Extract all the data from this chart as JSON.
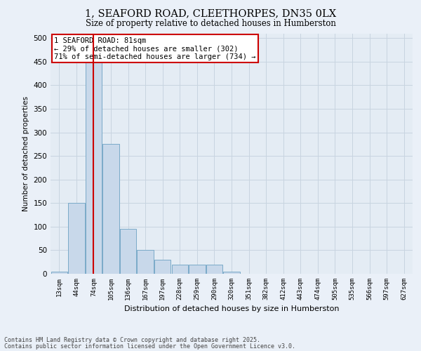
{
  "title1": "1, SEAFORD ROAD, CLEETHORPES, DN35 0LX",
  "title2": "Size of property relative to detached houses in Humberston",
  "xlabel": "Distribution of detached houses by size in Humberston",
  "ylabel": "Number of detached properties",
  "categories": [
    "13sqm",
    "44sqm",
    "74sqm",
    "105sqm",
    "136sqm",
    "167sqm",
    "197sqm",
    "228sqm",
    "259sqm",
    "290sqm",
    "320sqm",
    "351sqm",
    "382sqm",
    "412sqm",
    "443sqm",
    "474sqm",
    "505sqm",
    "535sqm",
    "566sqm",
    "597sqm",
    "627sqm"
  ],
  "bar_values": [
    5,
    150,
    460,
    275,
    95,
    50,
    30,
    20,
    20,
    20,
    5,
    0,
    0,
    0,
    0,
    0,
    0,
    0,
    0,
    0,
    0
  ],
  "bar_color": "#c8d8ea",
  "bar_edge_color": "#7aaac8",
  "grid_color": "#c8d4e0",
  "background_color": "#e4ecf4",
  "fig_background": "#eaf0f8",
  "red_line_x": 2,
  "annotation_text": "1 SEAFORD ROAD: 81sqm\n← 29% of detached houses are smaller (302)\n71% of semi-detached houses are larger (734) →",
  "annotation_box_facecolor": "#ffffff",
  "annotation_box_edgecolor": "#cc0000",
  "red_line_color": "#cc0000",
  "ylim": [
    0,
    510
  ],
  "yticks": [
    0,
    50,
    100,
    150,
    200,
    250,
    300,
    350,
    400,
    450,
    500
  ],
  "footer1": "Contains HM Land Registry data © Crown copyright and database right 2025.",
  "footer2": "Contains public sector information licensed under the Open Government Licence v3.0."
}
